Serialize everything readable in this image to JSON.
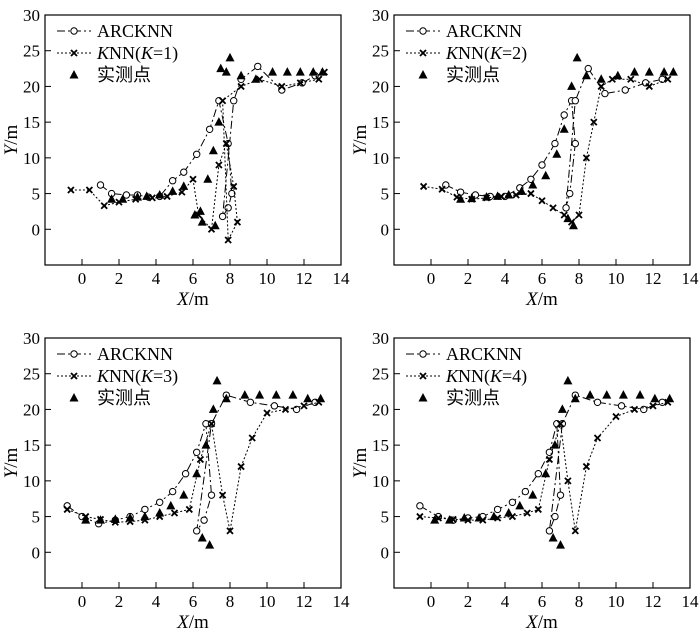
{
  "chart_data": [
    {
      "type": "scatter",
      "panel": "K=1",
      "xlabel": "X/m",
      "ylabel": "Y/m",
      "xlim": [
        -2,
        14
      ],
      "ylim": [
        -5,
        30
      ],
      "xticks": [
        0,
        2,
        4,
        6,
        8,
        10,
        12,
        14
      ],
      "yticks": [
        0,
        5,
        10,
        15,
        20,
        25,
        30
      ],
      "legend": [
        "ARCKNN",
        "KNN(K=1)",
        "实测点"
      ],
      "series": [
        {
          "name": "ARCKNN",
          "x": [
            1.0,
            1.6,
            2.4,
            3.0,
            3.6,
            4.2,
            4.9,
            5.5,
            6.2,
            6.9,
            7.4,
            7.9,
            8.1,
            7.9,
            7.6,
            8.2,
            8.6,
            9.5,
            10.8,
            11.9,
            12.6
          ],
          "y": [
            6.2,
            5.0,
            4.8,
            4.8,
            4.5,
            4.6,
            6.8,
            8.0,
            10.5,
            14.0,
            18.0,
            12.0,
            5.0,
            3.0,
            1.8,
            18.0,
            21.0,
            22.8,
            19.5,
            20.5,
            21.5
          ]
        },
        {
          "name": "KNN(K=1)",
          "x": [
            -0.6,
            0.4,
            1.2,
            2.0,
            2.9,
            3.8,
            4.6,
            5.4,
            6.0,
            6.3,
            7.0,
            7.4,
            7.8,
            8.2,
            8.4,
            7.9,
            7.6,
            8.6,
            9.6,
            10.8,
            11.8,
            12.8,
            13.1
          ],
          "y": [
            5.5,
            5.5,
            3.3,
            3.8,
            4.2,
            4.4,
            4.6,
            5.2,
            7.0,
            2.0,
            0.0,
            9.0,
            12.0,
            6.0,
            1.0,
            -1.5,
            18.0,
            20.0,
            21.0,
            20.0,
            20.5,
            21.0,
            22.0
          ]
        },
        {
          "name": "实测点",
          "x": [
            1.6,
            2.2,
            3.0,
            3.5,
            4.2,
            4.9,
            5.5,
            6.1,
            6.4,
            6.8,
            7.1,
            7.4,
            7.8,
            8.0,
            7.5,
            7.2,
            6.5,
            8.6,
            9.4,
            10.3,
            11.1,
            11.8,
            12.5,
            13.0
          ],
          "y": [
            4.2,
            4.2,
            4.5,
            4.6,
            4.8,
            5.3,
            6.0,
            2.0,
            2.5,
            7.0,
            11.0,
            15.0,
            22.0,
            24.0,
            22.5,
            0.5,
            1.0,
            21.5,
            21.0,
            22.0,
            22.0,
            22.0,
            22.0,
            22.0
          ]
        }
      ]
    },
    {
      "type": "scatter",
      "panel": "K=2",
      "xlabel": "X/m",
      "ylabel": "Y/m",
      "xlim": [
        -2,
        14
      ],
      "ylim": [
        -5,
        30
      ],
      "xticks": [
        0,
        2,
        4,
        6,
        8,
        10,
        12,
        14
      ],
      "yticks": [
        0,
        5,
        10,
        15,
        20,
        25,
        30
      ],
      "legend": [
        "ARCKNN",
        "KNN(K=2)",
        "实测点"
      ],
      "series": [
        {
          "name": "ARCKNN",
          "x": [
            0.8,
            1.6,
            2.4,
            3.2,
            4.0,
            4.8,
            5.4,
            6.0,
            6.7,
            7.2,
            7.6,
            7.8,
            7.5,
            7.3,
            7.8,
            8.5,
            9.4,
            10.5,
            11.6,
            12.5
          ],
          "y": [
            6.2,
            5.2,
            4.8,
            4.6,
            4.6,
            5.8,
            7.0,
            9.0,
            12.0,
            16.0,
            18.0,
            12.0,
            5.0,
            3.0,
            18.0,
            22.5,
            19.0,
            19.5,
            20.5,
            21.0
          ]
        },
        {
          "name": "KNN(K=2)",
          "x": [
            -0.4,
            0.6,
            1.4,
            2.2,
            3.0,
            3.8,
            4.6,
            5.4,
            6.0,
            6.6,
            7.2,
            7.6,
            8.0,
            8.4,
            8.8,
            9.2,
            9.8,
            10.8,
            11.8,
            12.8
          ],
          "y": [
            6.0,
            5.6,
            4.5,
            4.2,
            4.4,
            4.6,
            4.8,
            5.0,
            4.0,
            3.0,
            2.0,
            1.0,
            2.0,
            10.0,
            15.0,
            20.0,
            21.0,
            21.0,
            20.0,
            21.0
          ]
        },
        {
          "name": "实测点",
          "x": [
            1.6,
            2.2,
            3.0,
            3.6,
            4.2,
            4.9,
            5.5,
            6.2,
            6.8,
            7.2,
            7.6,
            7.9,
            7.7,
            7.4,
            8.4,
            9.2,
            10.1,
            11.0,
            11.8,
            12.6,
            13.1
          ],
          "y": [
            4.2,
            4.3,
            4.5,
            4.6,
            4.8,
            5.3,
            6.2,
            7.5,
            10.5,
            14.0,
            20.0,
            24.0,
            0.5,
            1.5,
            21.5,
            21.0,
            21.5,
            22.0,
            22.0,
            22.0,
            22.0
          ]
        }
      ]
    },
    {
      "type": "scatter",
      "panel": "K=3",
      "xlabel": "X/m",
      "ylabel": "Y/m",
      "xlim": [
        -2,
        14
      ],
      "ylim": [
        -5,
        30
      ],
      "xticks": [
        0,
        2,
        4,
        6,
        8,
        10,
        12,
        14
      ],
      "yticks": [
        0,
        5,
        10,
        15,
        20,
        25,
        30
      ],
      "legend": [
        "ARCKNN",
        "KNN(K=3)",
        "实测点"
      ],
      "series": [
        {
          "name": "ARCKNN",
          "x": [
            -0.8,
            0.0,
            0.9,
            1.8,
            2.6,
            3.4,
            4.2,
            4.9,
            5.6,
            6.2,
            6.7,
            7.0,
            6.6,
            6.2,
            7.0,
            7.8,
            9.1,
            10.4,
            11.6,
            12.6
          ],
          "y": [
            6.5,
            5.0,
            4.0,
            4.5,
            5.0,
            6.0,
            7.0,
            8.5,
            11.0,
            14.0,
            18.0,
            8.0,
            4.5,
            3.0,
            18.0,
            22.0,
            21.0,
            20.5,
            20.0,
            21.0
          ]
        },
        {
          "name": "KNN(K=3)",
          "x": [
            -0.8,
            0.2,
            1.0,
            1.8,
            2.6,
            3.4,
            4.2,
            5.0,
            5.8,
            6.4,
            7.0,
            7.6,
            8.0,
            8.6,
            9.2,
            10.0,
            11.0,
            12.0,
            12.8
          ],
          "y": [
            6.0,
            5.0,
            4.6,
            4.2,
            4.3,
            4.5,
            5.0,
            5.5,
            6.0,
            13.0,
            18.0,
            8.0,
            3.0,
            12.0,
            16.0,
            19.5,
            20.0,
            20.5,
            21.0
          ]
        },
        {
          "name": "实测点",
          "x": [
            0.2,
            1.0,
            1.8,
            2.6,
            3.4,
            4.2,
            4.8,
            5.5,
            6.2,
            6.7,
            7.1,
            7.3,
            6.9,
            6.5,
            7.8,
            8.8,
            9.6,
            10.5,
            11.4,
            12.2,
            12.9
          ],
          "y": [
            4.5,
            4.5,
            4.6,
            4.8,
            5.0,
            5.5,
            6.5,
            8.0,
            11.0,
            15.0,
            20.0,
            24.0,
            1.0,
            2.0,
            21.5,
            22.0,
            22.0,
            22.0,
            22.0,
            21.5,
            21.5
          ]
        }
      ]
    },
    {
      "type": "scatter",
      "panel": "K=4",
      "xlabel": "X/m",
      "ylabel": "Y/m",
      "xlim": [
        -2,
        14
      ],
      "ylim": [
        -5,
        30
      ],
      "xticks": [
        0,
        2,
        4,
        6,
        8,
        10,
        12,
        14
      ],
      "yticks": [
        0,
        5,
        10,
        15,
        20,
        25,
        30
      ],
      "legend": [
        "ARCKNN",
        "KNN(K=4)",
        "实测点"
      ],
      "series": [
        {
          "name": "ARCKNN",
          "x": [
            -0.6,
            0.4,
            1.2,
            2.0,
            2.8,
            3.6,
            4.4,
            5.1,
            5.8,
            6.4,
            6.8,
            7.0,
            6.7,
            6.4,
            7.1,
            7.8,
            9.0,
            10.3,
            11.5,
            12.5
          ],
          "y": [
            6.5,
            5.0,
            4.5,
            4.8,
            5.0,
            6.0,
            7.0,
            8.5,
            11.0,
            14.0,
            18.0,
            8.0,
            5.0,
            3.0,
            18.0,
            22.0,
            21.0,
            20.5,
            20.0,
            21.0
          ]
        },
        {
          "name": "KNN(K=4)",
          "x": [
            -0.6,
            0.4,
            1.2,
            2.0,
            2.8,
            3.6,
            4.4,
            5.2,
            5.8,
            6.4,
            7.0,
            7.4,
            7.8,
            8.4,
            9.0,
            10.0,
            11.0,
            12.0,
            12.8
          ],
          "y": [
            5.0,
            4.8,
            4.6,
            4.5,
            4.5,
            4.8,
            5.0,
            5.5,
            6.0,
            13.0,
            18.0,
            10.0,
            3.0,
            12.0,
            16.0,
            19.0,
            20.0,
            20.5,
            21.0
          ]
        },
        {
          "name": "实测点",
          "x": [
            0.2,
            1.0,
            1.8,
            2.6,
            3.4,
            4.2,
            4.8,
            5.5,
            6.2,
            6.7,
            7.1,
            7.4,
            7.0,
            6.6,
            7.8,
            8.6,
            9.5,
            10.4,
            11.3,
            12.1,
            12.9
          ],
          "y": [
            4.5,
            4.5,
            4.8,
            4.8,
            5.0,
            5.5,
            6.5,
            8.0,
            11.0,
            15.0,
            20.0,
            24.0,
            1.0,
            2.0,
            21.5,
            22.0,
            22.0,
            22.0,
            22.0,
            21.5,
            21.5
          ]
        }
      ]
    }
  ]
}
